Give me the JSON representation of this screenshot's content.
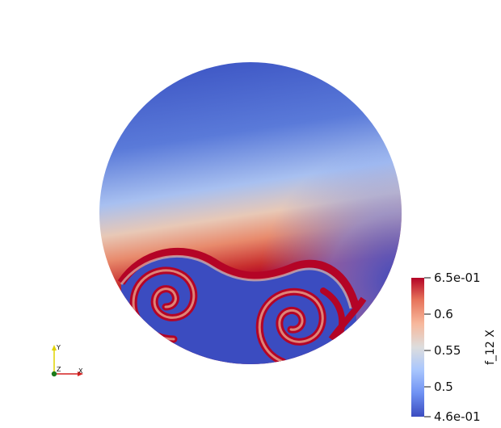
{
  "colorbar": {
    "title": "f_12 X",
    "ticks": [
      "6.5e-01",
      "0.6",
      "0.55",
      "0.5",
      "4.6e-01"
    ],
    "range": [
      0.46,
      0.65
    ],
    "colormap": [
      "#3b4cc0",
      "#6f92f3",
      "#aac7fd",
      "#dddddd",
      "#f7b89c",
      "#e7745b",
      "#b40426"
    ]
  },
  "orientation_axes": {
    "y_label": "Y",
    "z_label": "Z",
    "x_label": "X",
    "colors": {
      "x": "#d42020",
      "y": "#e0d200",
      "z": "#1a7a1a"
    }
  },
  "field": {
    "low_color": "#3b4cc0",
    "high_color": "#b40426"
  }
}
